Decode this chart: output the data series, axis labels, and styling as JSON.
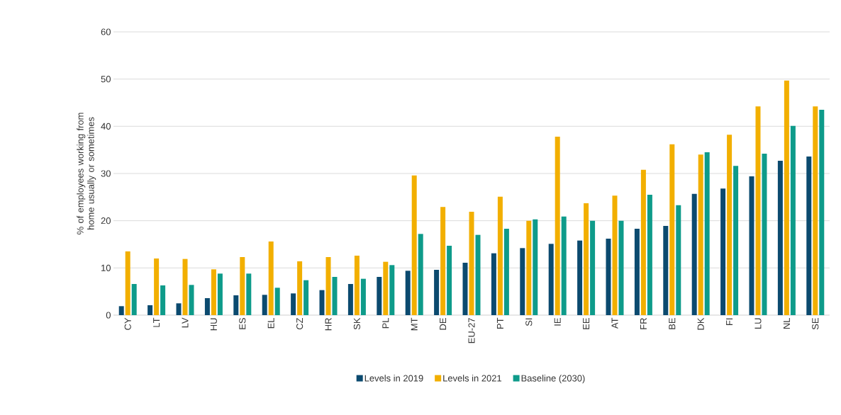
{
  "chart_data": {
    "type": "bar",
    "ylabel": "% of employees working from home usually or sometimes",
    "categories": [
      "CY",
      "LT",
      "LV",
      "HU",
      "ES",
      "EL",
      "CZ",
      "HR",
      "SK",
      "PL",
      "MT",
      "DE",
      "EU-27",
      "PT",
      "SI",
      "IE",
      "EE",
      "AT",
      "FR",
      "BE",
      "DK",
      "FI",
      "LU",
      "NL",
      "SE"
    ],
    "series": [
      {
        "name": "Levels in 2019",
        "color": "#0b4a6f",
        "values": [
          1.9,
          2.1,
          2.5,
          3.6,
          4.2,
          4.3,
          4.6,
          5.3,
          6.6,
          8.1,
          9.4,
          9.6,
          11.1,
          13.1,
          14.2,
          15.1,
          15.8,
          16.2,
          18.3,
          18.9,
          25.7,
          26.8,
          29.4,
          32.7,
          33.6
        ]
      },
      {
        "name": "Levels in 2021",
        "color": "#f2af00",
        "values": [
          13.5,
          12.0,
          11.9,
          9.7,
          12.3,
          15.6,
          11.4,
          12.3,
          12.6,
          11.3,
          29.6,
          22.9,
          21.9,
          25.1,
          20.0,
          37.8,
          23.7,
          25.3,
          30.8,
          36.2,
          34.0,
          38.2,
          44.2,
          49.7,
          44.2
        ]
      },
      {
        "name": "Baseline (2030)",
        "color": "#0e9b8a",
        "values": [
          6.6,
          6.3,
          6.4,
          8.8,
          8.8,
          5.8,
          7.4,
          8.1,
          7.7,
          10.6,
          17.2,
          14.7,
          17.0,
          18.3,
          20.3,
          20.9,
          20.0,
          20.0,
          25.5,
          23.3,
          34.5,
          31.6,
          34.2,
          40.1,
          43.5
        ]
      }
    ],
    "ylim": [
      0,
      60
    ],
    "yticks": [
      0,
      10,
      20,
      30,
      40,
      50,
      60
    ],
    "grid": "y",
    "legend": "bottom"
  }
}
